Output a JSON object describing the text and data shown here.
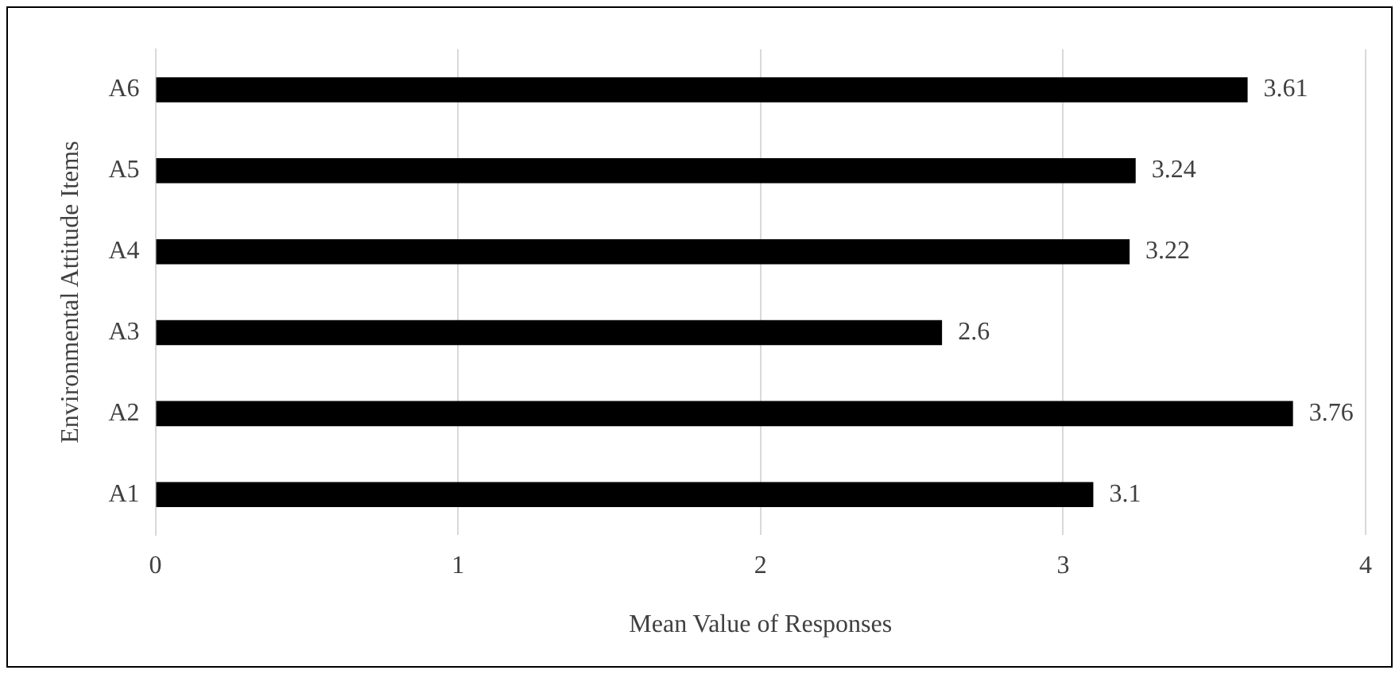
{
  "chart_data": {
    "type": "bar",
    "orientation": "horizontal",
    "xlabel": "Mean Value of Responses",
    "ylabel": "Environmental Attitude Items",
    "categories": [
      "A6",
      "A5",
      "A4",
      "A3",
      "A2",
      "A1"
    ],
    "values": [
      3.61,
      3.24,
      3.22,
      2.6,
      3.76,
      3.1
    ],
    "color": "#000000",
    "xlim": [
      0,
      4
    ],
    "xticks": [
      0,
      1,
      2,
      3,
      4
    ],
    "grid": "x",
    "data_labels": true,
    "legend": false
  }
}
